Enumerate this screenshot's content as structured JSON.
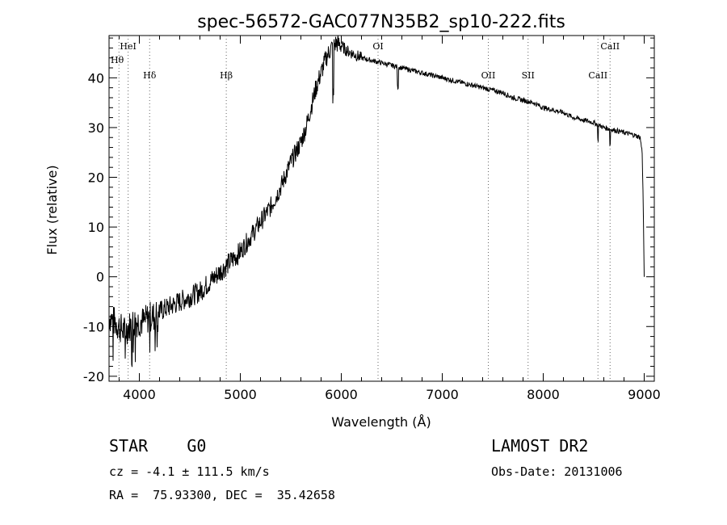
{
  "chart_data": {
    "type": "line",
    "title": "spec-56572-GAC077N35B2_sp10-222.fits",
    "xlabel": "Wavelength (Å)",
    "ylabel": "Flux (relative)",
    "xlim": [
      3700,
      9100
    ],
    "ylim": [
      -21,
      48.5
    ],
    "xticks": [
      4000,
      5000,
      6000,
      7000,
      8000,
      9000
    ],
    "xtick_labels": [
      "4000",
      "5000",
      "6000",
      "7000",
      "8000",
      "9000"
    ],
    "yticks": [
      -20,
      -10,
      0,
      10,
      20,
      30,
      40
    ],
    "ytick_labels": [
      "-20",
      "-10",
      "0",
      "10",
      "20",
      "30",
      "40"
    ],
    "grid": false,
    "line_color": "#000000",
    "series": [
      {
        "x": [
          3700,
          3750,
          3800,
          3850,
          3900,
          3950,
          4000,
          4050,
          4100,
          4150,
          4200,
          4300,
          4400,
          4500,
          4600,
          4700,
          4800,
          4900,
          5000,
          5100,
          5200,
          5300,
          5400,
          5500,
          5600,
          5650,
          5700,
          5750,
          5800,
          5850,
          5900,
          5950,
          6000,
          6050,
          6100,
          6150,
          6200,
          6300,
          6400,
          6500,
          6600,
          6700,
          6800,
          6900,
          7000,
          7100,
          7200,
          7300,
          7400,
          7500,
          7600,
          7700,
          7800,
          7900,
          8000,
          8100,
          8200,
          8300,
          8400,
          8500,
          8600,
          8700,
          8800,
          8900,
          8960,
          8980,
          8990,
          9000
        ],
        "y": [
          -8,
          -9,
          -10,
          -11,
          -10,
          -9,
          -9,
          -9,
          -8,
          -8,
          -7,
          -6,
          -5,
          -4,
          -3,
          -1,
          1,
          3,
          5,
          8,
          11,
          14,
          18,
          23,
          27,
          30,
          34,
          38,
          41,
          44,
          46,
          47,
          46.5,
          45.5,
          45,
          44.5,
          44,
          43.5,
          43,
          42.5,
          42,
          41.5,
          41,
          40.5,
          40,
          39.5,
          39,
          38.5,
          38,
          37.5,
          37,
          36,
          35.5,
          35,
          34,
          33.5,
          33,
          32,
          31.5,
          31,
          30,
          29.5,
          29,
          28.5,
          28,
          25,
          15,
          0
        ]
      }
    ],
    "lines": [
      {
        "name": "Hθ",
        "x": 3798
      },
      {
        "name": "HeI",
        "x": 3889
      },
      {
        "name": "Hδ",
        "x": 4102
      },
      {
        "name": "Hβ",
        "x": 4861
      },
      {
        "name": "OI",
        "x": 6364
      },
      {
        "name": "OII",
        "x": 7456
      },
      {
        "name": "SII",
        "x": 7850
      },
      {
        "name": "CaII",
        "x": 8542
      },
      {
        "name": "CaII",
        "x": 8662
      }
    ]
  },
  "info": {
    "object": "STAR    G0",
    "survey": "LAMOST DR2",
    "cz": "cz = -4.1 ± 111.5 km/s",
    "obs_date": "Obs-Date: 20131006",
    "coords": "RA =  75.93300, DEC =  35.42658"
  }
}
